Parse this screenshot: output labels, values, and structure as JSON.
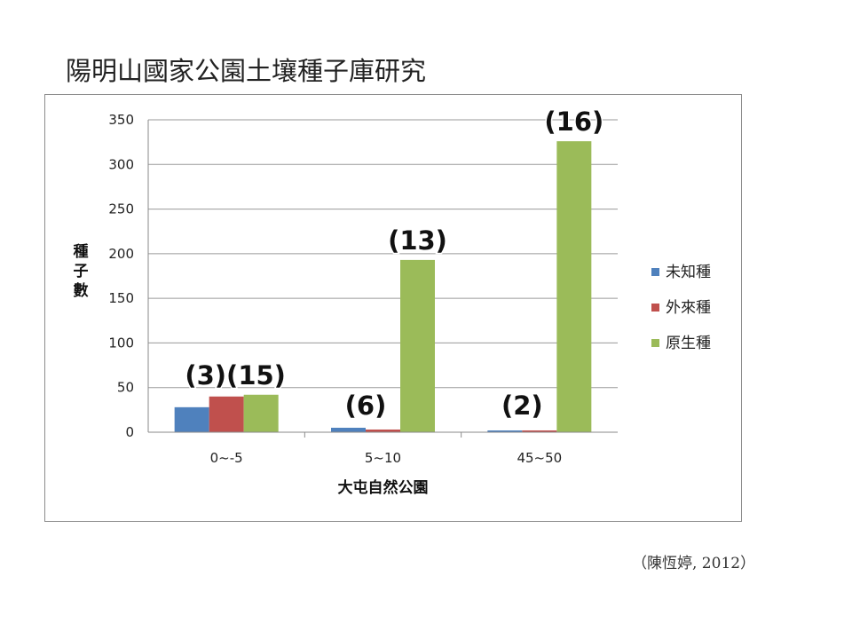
{
  "slide": {
    "title": "陽明山國家公園土壤種子庫研究",
    "citation": "（陳恆婷, 2012）"
  },
  "chart_data": {
    "type": "bar",
    "categories": [
      "0~-5",
      "5~10",
      "45~50"
    ],
    "series": [
      {
        "name": "未知種",
        "color": "#4f81bd",
        "values": [
          28,
          5,
          2
        ]
      },
      {
        "name": "外來種",
        "color": "#c0504d",
        "values": [
          40,
          3,
          2
        ]
      },
      {
        "name": "原生種",
        "color": "#9bbb59",
        "values": [
          42,
          193,
          326
        ]
      }
    ],
    "annotations": [
      {
        "category": "0~-5",
        "text": "(3)(15)"
      },
      {
        "category": "5~10",
        "text": "(6)"
      },
      {
        "category": "5~10",
        "text": "(13)"
      },
      {
        "category": "45~50",
        "text": "(2)"
      },
      {
        "category": "45~50",
        "text": "(16)"
      }
    ],
    "xlabel": "大屯自然公園",
    "ylabel": "種子數",
    "ylim": [
      0,
      350
    ],
    "yticks": [
      0,
      50,
      100,
      150,
      200,
      250,
      300,
      350
    ],
    "grid": true,
    "legend": "right"
  }
}
